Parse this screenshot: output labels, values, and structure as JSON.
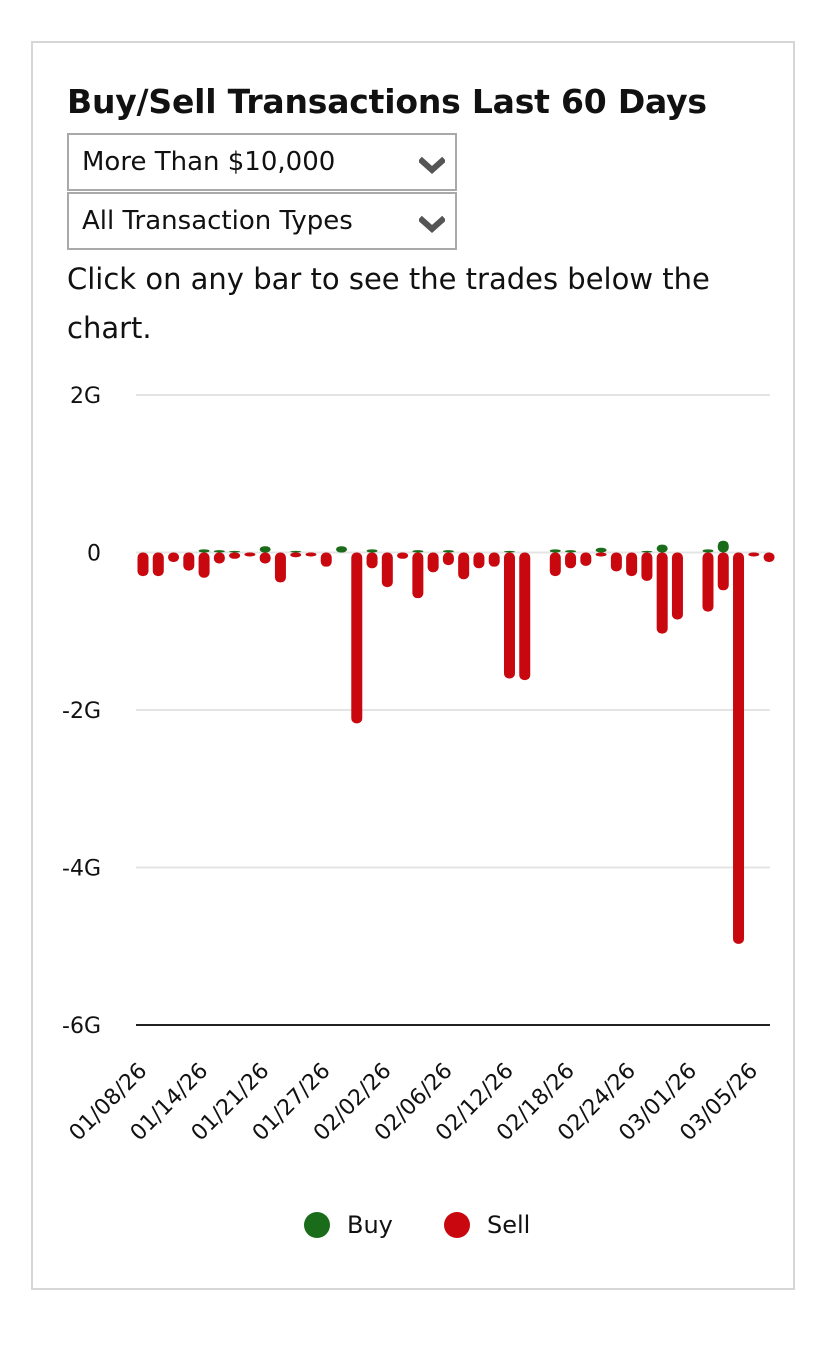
{
  "header": {
    "title": "Buy/Sell Transactions Last 60 Days",
    "hint": "Click on any bar to see the trades below the chart."
  },
  "filters": {
    "amount_selected": "More Than $10,000",
    "type_selected": "All Transaction Types"
  },
  "colors": {
    "buy": "#1a6b1a",
    "sell": "#c8070f",
    "grid": "#e4e4e4",
    "axis": "#222222"
  },
  "chart_data": {
    "type": "bar",
    "title": "Buy/Sell Transactions Last 60 Days",
    "xlabel": "",
    "ylabel": "",
    "ylim": [
      -6,
      2
    ],
    "y_ticks": [
      2,
      0,
      -2,
      -4,
      -6
    ],
    "y_tick_labels": [
      "2G",
      "0",
      "-2G",
      "-4G",
      "-6G"
    ],
    "x_tick_labels": [
      "01/08/26",
      "01/14/26",
      "01/21/26",
      "01/27/26",
      "02/02/26",
      "02/06/26",
      "02/12/26",
      "02/18/26",
      "02/24/26",
      "03/01/26",
      "03/05/26"
    ],
    "x_tick_index": [
      0,
      4,
      8,
      12,
      16,
      20,
      24,
      28,
      32,
      36,
      40
    ],
    "legend": [
      "Buy",
      "Sell"
    ],
    "legend_position": "bottom",
    "bar_count": 42,
    "units": "G (billions USD)",
    "series": [
      {
        "name": "Buy",
        "values": [
          0,
          0,
          0,
          0,
          0.04,
          0.03,
          0.02,
          0,
          0.08,
          0,
          0.02,
          0,
          0,
          0.08,
          0,
          0.04,
          0,
          0,
          0.03,
          0,
          0.03,
          0,
          0,
          0,
          0.02,
          0,
          0,
          0.04,
          0.03,
          0,
          0.06,
          0,
          0,
          0.02,
          0.1,
          0,
          0,
          0.04,
          0.15,
          0,
          0,
          0
        ]
      },
      {
        "name": "Sell",
        "values": [
          -0.3,
          -0.3,
          -0.12,
          -0.23,
          -0.32,
          -0.14,
          -0.08,
          -0.05,
          -0.14,
          -0.38,
          -0.06,
          -0.05,
          -0.18,
          0,
          -2.17,
          -0.2,
          -0.44,
          -0.08,
          -0.58,
          -0.25,
          -0.16,
          -0.34,
          -0.2,
          -0.18,
          -1.6,
          -1.62,
          0,
          -0.3,
          -0.2,
          -0.17,
          -0.05,
          -0.24,
          -0.3,
          -0.36,
          -1.03,
          -0.85,
          0,
          -0.75,
          -0.48,
          -4.97,
          -0.05,
          -0.12
        ]
      }
    ]
  }
}
